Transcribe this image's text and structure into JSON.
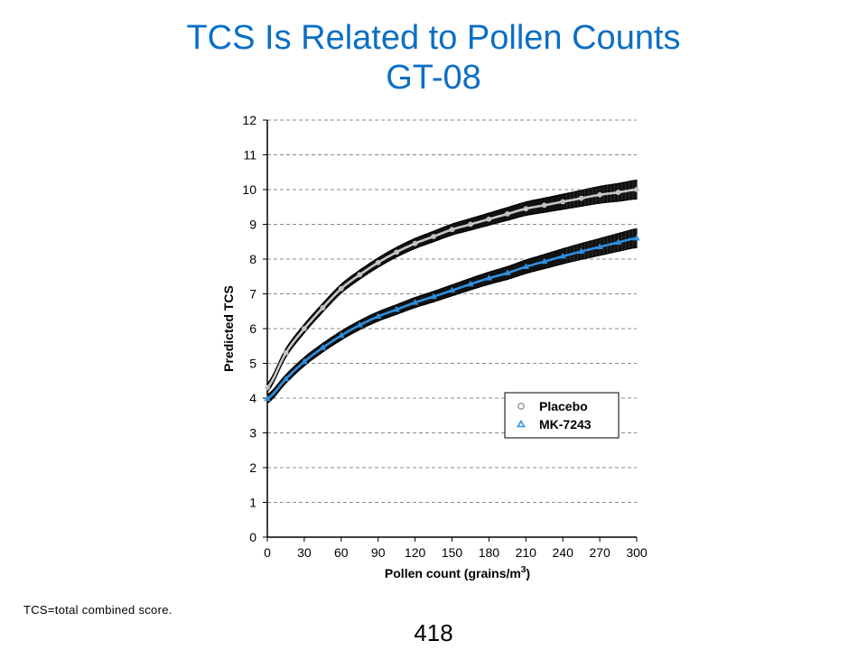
{
  "slide": {
    "title_line1": "TCS Is Related to Pollen Counts",
    "title_line2": "GT-08",
    "footnote": "TCS=total  combined  score.",
    "slide_number": "418"
  },
  "chart_data": {
    "type": "line",
    "xlabel": "Pollen count (grains/m",
    "xlabel_superscript": "3",
    "xlabel_suffix": ")",
    "ylabel": "Predicted TCS",
    "xlim": [
      0,
      300
    ],
    "ylim": [
      0,
      12
    ],
    "xticks": [
      0,
      30,
      60,
      90,
      120,
      150,
      180,
      210,
      240,
      270,
      300
    ],
    "yticks": [
      0,
      1,
      2,
      3,
      4,
      5,
      6,
      7,
      8,
      9,
      10,
      11,
      12
    ],
    "grid": "horizontal dashed",
    "legend_position": "lower-right",
    "x": [
      0,
      15,
      30,
      45,
      60,
      75,
      90,
      105,
      120,
      135,
      150,
      165,
      180,
      195,
      210,
      225,
      240,
      255,
      270,
      285,
      300
    ],
    "series": [
      {
        "name": "Placebo",
        "marker": "circle",
        "color": "#c8c8c8",
        "values": [
          4.3,
          5.3,
          6.0,
          6.6,
          7.15,
          7.55,
          7.9,
          8.2,
          8.45,
          8.65,
          8.85,
          9.0,
          9.15,
          9.3,
          9.45,
          9.55,
          9.65,
          9.75,
          9.85,
          9.92,
          10.0
        ]
      },
      {
        "name": "MK-7243",
        "marker": "triangle",
        "color": "#2f8fe0",
        "values": [
          3.98,
          4.55,
          5.05,
          5.45,
          5.8,
          6.1,
          6.35,
          6.55,
          6.75,
          6.92,
          7.1,
          7.28,
          7.45,
          7.6,
          7.78,
          7.93,
          8.08,
          8.22,
          8.35,
          8.48,
          8.6
        ]
      }
    ]
  }
}
